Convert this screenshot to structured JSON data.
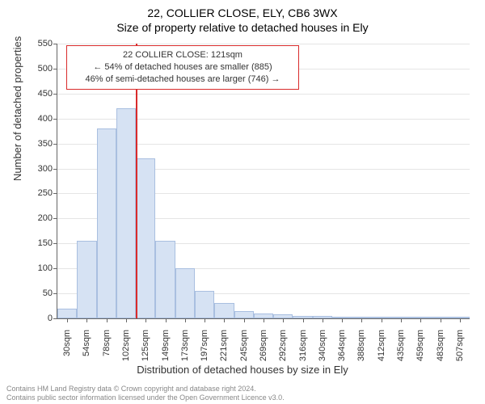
{
  "title_line_1": "22, COLLIER CLOSE, ELY, CB6 3WX",
  "title_line_2": "Size of property relative to detached houses in Ely",
  "chart": {
    "type": "histogram",
    "y_label": "Number of detached properties",
    "x_label": "Distribution of detached houses by size in Ely",
    "ylim": [
      0,
      550
    ],
    "ytick_step": 50,
    "background_color": "#ffffff",
    "grid_color": "#e5e5e5",
    "bar_fill": "#d6e2f3",
    "bar_border": "#a9bfe0",
    "marker_color": "#d92b2b",
    "bins": [
      {
        "label": "30sqm",
        "value": 20
      },
      {
        "label": "54sqm",
        "value": 155
      },
      {
        "label": "78sqm",
        "value": 380
      },
      {
        "label": "102sqm",
        "value": 420
      },
      {
        "label": "125sqm",
        "value": 320
      },
      {
        "label": "149sqm",
        "value": 155
      },
      {
        "label": "173sqm",
        "value": 100
      },
      {
        "label": "197sqm",
        "value": 55
      },
      {
        "label": "221sqm",
        "value": 30
      },
      {
        "label": "245sqm",
        "value": 15
      },
      {
        "label": "269sqm",
        "value": 10
      },
      {
        "label": "292sqm",
        "value": 8
      },
      {
        "label": "316sqm",
        "value": 5
      },
      {
        "label": "340sqm",
        "value": 5
      },
      {
        "label": "364sqm",
        "value": 3
      },
      {
        "label": "388sqm",
        "value": 2
      },
      {
        "label": "412sqm",
        "value": 2
      },
      {
        "label": "435sqm",
        "value": 2
      },
      {
        "label": "459sqm",
        "value": 2
      },
      {
        "label": "483sqm",
        "value": 2
      },
      {
        "label": "507sqm",
        "value": 3
      }
    ],
    "marker_value_index": 4,
    "annotation": {
      "line1": "22 COLLIER CLOSE: 121sqm",
      "line2": "← 54% of detached houses are smaller (885)",
      "line3": "46% of semi-detached houses are larger (746) →"
    }
  },
  "footer": {
    "line1": "Contains HM Land Registry data © Crown copyright and database right 2024.",
    "line2": "Contains public sector information licensed under the Open Government Licence v3.0."
  }
}
